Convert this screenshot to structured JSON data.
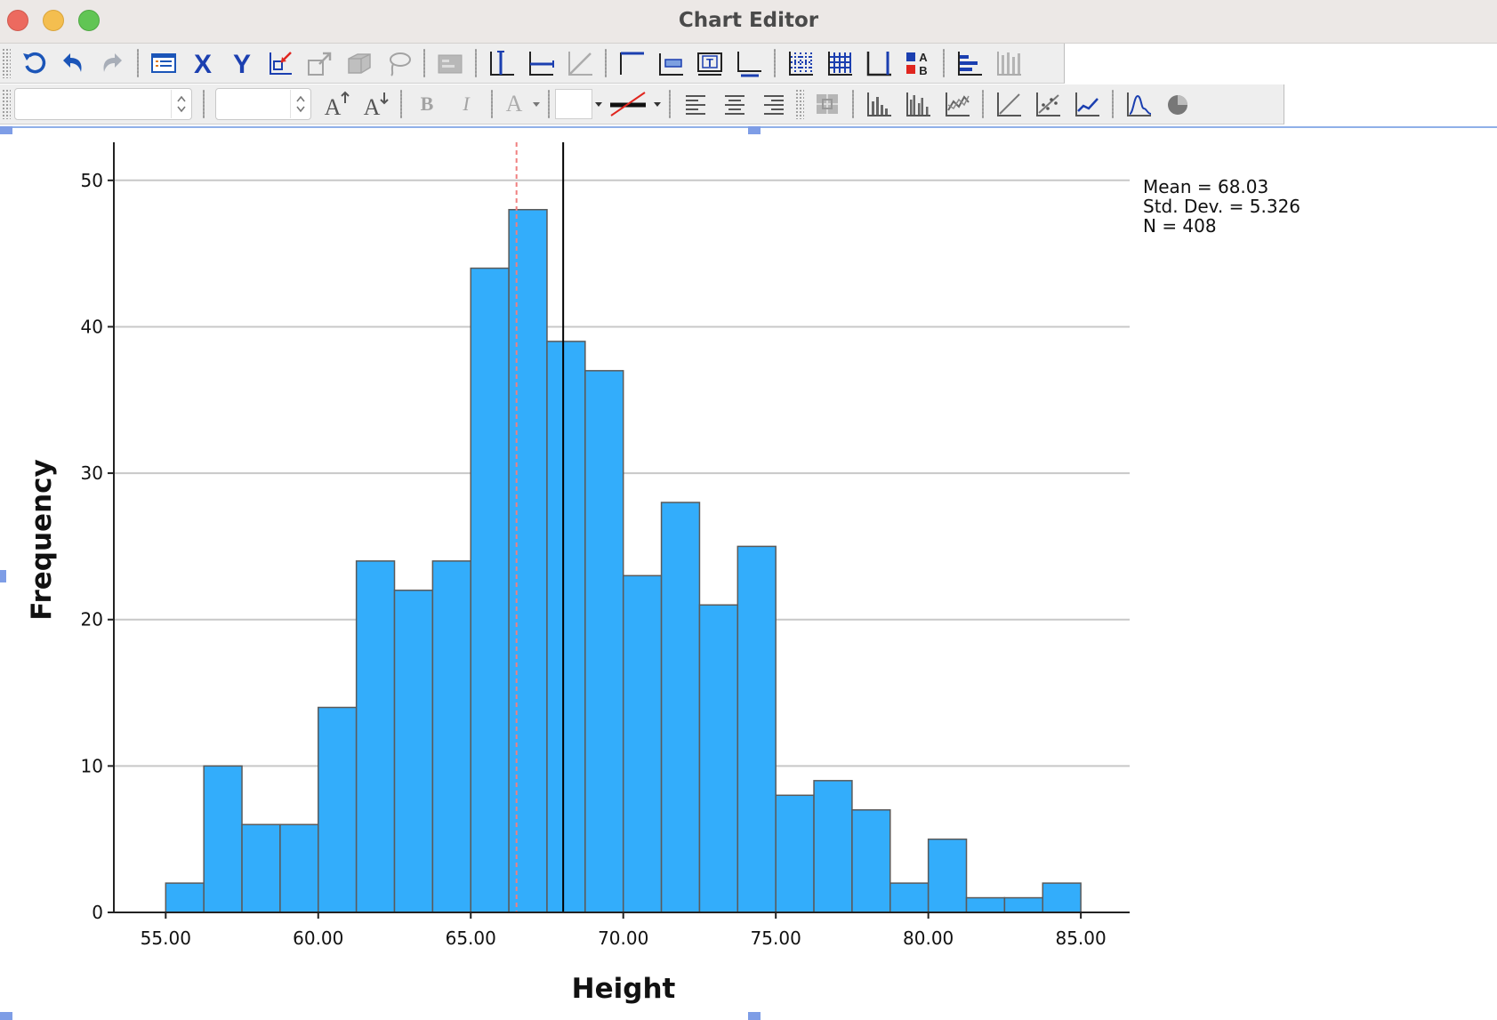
{
  "window": {
    "title": "Chart Editor"
  },
  "toolbar1": {
    "icons": [
      "rescale-icon",
      "undo-icon",
      "redo-icon",
      "properties-icon",
      "x-axis-icon",
      "y-axis-icon",
      "select-point-icon",
      "scale-to-fit-icon",
      "3d-rotate-icon",
      "lasso-icon",
      "data-label-mode-icon",
      "reference-line-x-icon",
      "reference-line-y-icon",
      "reference-line-equation-icon",
      "title-icon",
      "annotation-icon",
      "textbox-icon",
      "footnote-icon",
      "grid-lines-icon",
      "grid-both-icon",
      "axis-icon",
      "legend-icon",
      "transpose-icon",
      "bar-chart-icon"
    ]
  },
  "toolbar2": {
    "font_name_value": "",
    "font_size_value": "",
    "bold_label": "B",
    "italic_label": "I",
    "text_color_label": "A",
    "align": [
      "align-left-icon",
      "align-center-icon",
      "align-right-icon"
    ]
  },
  "colors": {
    "bar_fill": "#33adfb",
    "bar_stroke": "#5a5a5a",
    "mean_line": "#000000",
    "reference_line": "#f08080",
    "gridline": "#c8c8c8",
    "accent": "#8fb0e8"
  },
  "stats": {
    "mean": "Mean = 68.03",
    "std_dev": "Std. Dev. = 5.326",
    "n": "N = 408"
  },
  "chart_data": {
    "type": "bar",
    "title": "",
    "xlabel": "Height",
    "ylabel": "Frequency",
    "bin_width": 1.25,
    "bins_start": [
      55.0,
      56.25,
      57.5,
      58.75,
      60.0,
      61.25,
      62.5,
      63.75,
      65.0,
      66.25,
      67.5,
      68.75,
      70.0,
      71.25,
      72.5,
      73.75,
      75.0,
      76.25,
      77.5,
      78.75,
      80.0,
      81.25,
      82.5,
      83.75
    ],
    "values": [
      2,
      10,
      6,
      6,
      14,
      24,
      22,
      24,
      44,
      48,
      39,
      37,
      23,
      28,
      21,
      25,
      8,
      9,
      7,
      2,
      5,
      1,
      1,
      2
    ],
    "x_ticks": [
      "55.00",
      "60.00",
      "65.00",
      "70.00",
      "75.00",
      "80.00",
      "85.00"
    ],
    "x_tick_values": [
      55,
      60,
      65,
      70,
      75,
      80,
      85
    ],
    "y_ticks": [
      0,
      10,
      20,
      30,
      40,
      50
    ],
    "xlim": [
      53.3,
      86.6
    ],
    "ylim": [
      0,
      52.6
    ],
    "grid": "horizontal",
    "reference_lines": [
      {
        "type": "mean",
        "x": 68.03,
        "style": "solid"
      },
      {
        "type": "reference",
        "x": 66.5,
        "style": "dashed"
      }
    ]
  }
}
